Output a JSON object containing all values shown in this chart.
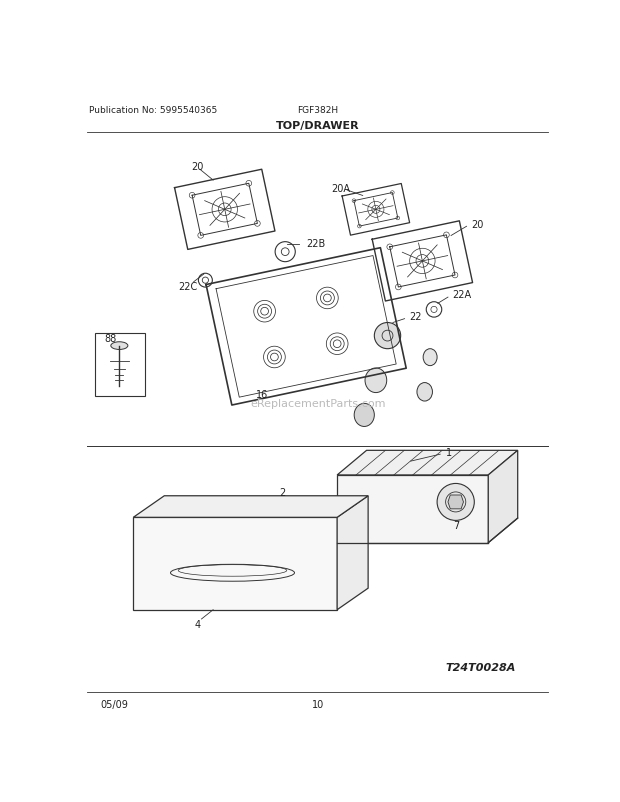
{
  "title": "TOP/DRAWER",
  "pub_no": "Publication No: 5995540365",
  "model": "FGF382H",
  "date": "05/09",
  "page": "10",
  "watermark": "eReplacementParts.com",
  "diagram_id": "T24T0028A",
  "bg_color": "#ffffff",
  "line_color": "#333333",
  "text_color": "#222222"
}
